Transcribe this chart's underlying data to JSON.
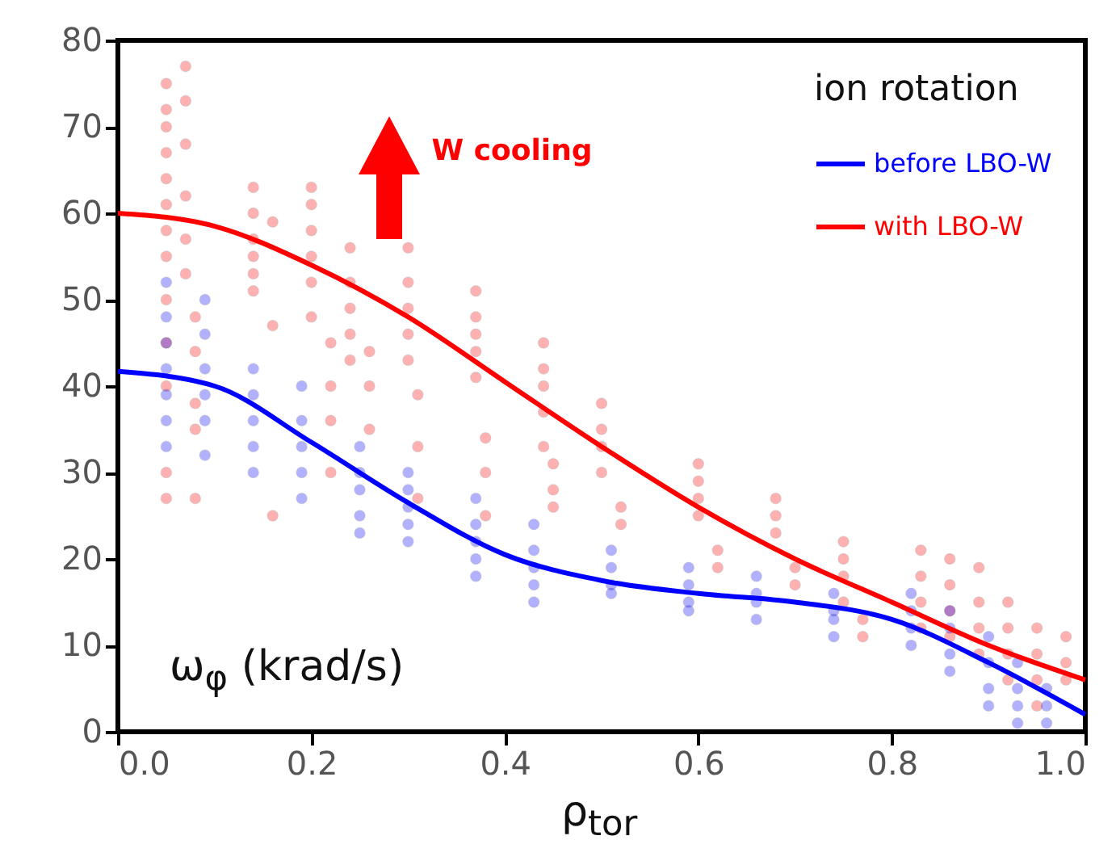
{
  "chart_data": {
    "type": "scatter",
    "xlabel": "ρ$_{tor}$",
    "ylabel": "ω$_{φ}$ (krad/s)",
    "legend_title": "ion rotation",
    "annotations": [
      "W cooling"
    ],
    "xlim": [
      0,
      1
    ],
    "xticks": [
      {
        "value": 0,
        "label": "0.0"
      },
      0.2,
      0.4,
      0.6,
      0.8,
      {
        "value": 1,
        "label": "1.0"
      }
    ],
    "ylim": [
      0,
      80
    ],
    "yticks": [
      0,
      10,
      20,
      30,
      40,
      50,
      60,
      70,
      80
    ],
    "grid": false,
    "legend": "top right",
    "marker": "circle",
    "series": [
      {
        "color": "#ff0000",
        "x": [
          0.05,
          0.05,
          0.05,
          0.05,
          0.05,
          0.05,
          0.05,
          0.05,
          0.05,
          0.05,
          0.05,
          0.05,
          0.05,
          0.07,
          0.07,
          0.07,
          0.07,
          0.07,
          0.07,
          0.08,
          0.08,
          0.08,
          0.08,
          0.08,
          0.14,
          0.14,
          0.14,
          0.14,
          0.14,
          0.14,
          0.16,
          0.16,
          0.16,
          0.2,
          0.2,
          0.2,
          0.2,
          0.2,
          0.2,
          0.22,
          0.22,
          0.22,
          0.22,
          0.24,
          0.24,
          0.24,
          0.24,
          0.24,
          0.26,
          0.26,
          0.26,
          0.3,
          0.3,
          0.3,
          0.3,
          0.3,
          0.31,
          0.31,
          0.31,
          0.37,
          0.37,
          0.37,
          0.37,
          0.37,
          0.38,
          0.38,
          0.38,
          0.44,
          0.44,
          0.44,
          0.44,
          0.44,
          0.45,
          0.45,
          0.45,
          0.5,
          0.5,
          0.5,
          0.5,
          0.52,
          0.52,
          0.6,
          0.6,
          0.6,
          0.6,
          0.62,
          0.62,
          0.68,
          0.68,
          0.68,
          0.7,
          0.7,
          0.75,
          0.75,
          0.75,
          0.75,
          0.77,
          0.77,
          0.83,
          0.83,
          0.83,
          0.83,
          0.86,
          0.86,
          0.86,
          0.86,
          0.89,
          0.89,
          0.89,
          0.89,
          0.92,
          0.92,
          0.92,
          0.92,
          0.95,
          0.95,
          0.95,
          0.95,
          0.98,
          0.98,
          0.98
        ],
        "values": [
          75,
          72,
          70,
          67,
          64,
          61,
          58,
          55,
          50,
          45,
          40,
          30,
          27,
          77,
          73,
          68,
          62,
          57,
          53,
          48,
          44,
          38,
          35,
          27,
          63,
          60,
          57,
          55,
          53,
          51,
          59,
          47,
          25,
          63,
          61,
          58,
          55,
          52,
          48,
          45,
          40,
          36,
          30,
          56,
          52,
          49,
          46,
          43,
          44,
          40,
          35,
          56,
          52,
          49,
          46,
          43,
          39,
          33,
          27,
          51,
          48,
          46,
          44,
          41,
          34,
          30,
          25,
          45,
          42,
          40,
          37,
          33,
          31,
          28,
          26,
          38,
          35,
          33,
          30,
          26,
          24,
          31,
          29,
          27,
          25,
          21,
          19,
          27,
          25,
          23,
          19,
          17,
          22,
          20,
          18,
          15,
          13,
          11,
          21,
          18,
          15,
          12,
          20,
          17,
          14,
          11,
          19,
          15,
          12,
          9,
          15,
          12,
          9,
          6,
          12,
          9,
          6,
          3,
          11,
          8,
          6
        ]
      },
      {
        "color": "#0000ff",
        "x": [
          0.05,
          0.05,
          0.05,
          0.05,
          0.05,
          0.05,
          0.05,
          0.09,
          0.09,
          0.09,
          0.09,
          0.09,
          0.09,
          0.14,
          0.14,
          0.14,
          0.14,
          0.14,
          0.19,
          0.19,
          0.19,
          0.19,
          0.19,
          0.25,
          0.25,
          0.25,
          0.25,
          0.25,
          0.3,
          0.3,
          0.3,
          0.3,
          0.3,
          0.37,
          0.37,
          0.37,
          0.37,
          0.37,
          0.43,
          0.43,
          0.43,
          0.43,
          0.43,
          0.51,
          0.51,
          0.51,
          0.51,
          0.59,
          0.59,
          0.59,
          0.59,
          0.66,
          0.66,
          0.66,
          0.66,
          0.74,
          0.74,
          0.74,
          0.74,
          0.82,
          0.82,
          0.82,
          0.82,
          0.86,
          0.86,
          0.86,
          0.86,
          0.9,
          0.9,
          0.9,
          0.9,
          0.93,
          0.93,
          0.93,
          0.93,
          0.96,
          0.96,
          0.96
        ],
        "values": [
          52,
          48,
          45,
          42,
          39,
          36,
          33,
          50,
          46,
          42,
          39,
          36,
          32,
          42,
          39,
          36,
          33,
          30,
          40,
          36,
          33,
          30,
          27,
          33,
          30,
          28,
          25,
          23,
          30,
          28,
          26,
          24,
          22,
          27,
          24,
          22,
          20,
          18,
          24,
          21,
          19,
          17,
          15,
          21,
          19,
          17,
          16,
          19,
          17,
          15,
          14,
          18,
          16,
          15,
          13,
          16,
          14,
          13,
          11,
          16,
          14,
          12,
          10,
          14,
          12,
          9,
          7,
          11,
          8,
          5,
          3,
          8,
          5,
          3,
          1,
          5,
          3,
          1
        ]
      },
      {
        "type": "line",
        "name": "before LBO-W",
        "color": "#0000ff",
        "marker": "none",
        "line_style": "solid",
        "x": [
          0,
          0.1,
          0.2,
          0.3,
          0.4,
          0.5,
          0.6,
          0.7,
          0.8,
          0.9,
          1
        ],
        "values": [
          41.7,
          40,
          33.5,
          26.5,
          20.5,
          17.5,
          16,
          15,
          13,
          8,
          2
        ]
      },
      {
        "type": "line",
        "name": "with LBO-W",
        "color": "#ff0000",
        "marker": "none",
        "line_style": "solid",
        "x": [
          0,
          0.1,
          0.2,
          0.3,
          0.4,
          0.5,
          0.6,
          0.7,
          0.8,
          0.9,
          1
        ],
        "values": [
          60,
          58.5,
          54,
          48,
          40.5,
          33,
          26,
          20,
          15,
          10,
          6
        ]
      }
    ]
  }
}
